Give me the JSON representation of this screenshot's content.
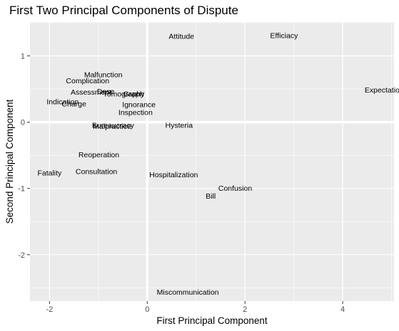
{
  "chart_data": {
    "type": "scatter",
    "title": "First Two Principal Components of Dispute",
    "xlabel": "First Principal Component",
    "ylabel": "Second Principal Component",
    "xlim": [
      -2.4,
      5.05
    ],
    "ylim": [
      -2.7,
      1.51
    ],
    "xticks": [
      -2,
      0,
      2,
      4
    ],
    "yticks": [
      -2,
      -1,
      0,
      1
    ],
    "xtick_labels": [
      "-2",
      "0",
      "2",
      "4"
    ],
    "ytick_labels": [
      "-2",
      "-1",
      "0",
      "1"
    ],
    "reference_lines": {
      "x": 0,
      "y": 0,
      "color": "#ffffff"
    },
    "grid": true,
    "panel_background": "#ebebeb",
    "grid_color": "#ffffff",
    "text_color": "#000000",
    "tick_color": "#4d4d4d",
    "points": [
      {
        "label": "Attitude",
        "x": 0.7,
        "y": 1.3
      },
      {
        "label": "Efficiacy",
        "x": 2.8,
        "y": 1.31
      },
      {
        "label": "Expectation",
        "x": 4.85,
        "y": 0.49
      },
      {
        "label": "Malfunction",
        "x": -0.9,
        "y": 0.72
      },
      {
        "label": "Complication",
        "x": -1.22,
        "y": 0.63
      },
      {
        "label": "Assessment",
        "x": -1.15,
        "y": 0.46
      },
      {
        "label": "Dose",
        "x": -0.85,
        "y": 0.47
      },
      {
        "label": "Tomography",
        "x": -0.48,
        "y": 0.43
      },
      {
        "label": "Graph",
        "x": -0.28,
        "y": 0.43
      },
      {
        "label": "Indication",
        "x": -1.73,
        "y": 0.31
      },
      {
        "label": "Charge",
        "x": -1.5,
        "y": 0.28
      },
      {
        "label": "Ignorance",
        "x": -0.17,
        "y": 0.27
      },
      {
        "label": "Inspection",
        "x": -0.24,
        "y": 0.15
      },
      {
        "label": "Bureaucracy",
        "x": -0.7,
        "y": -0.04
      },
      {
        "label": "Malpractice",
        "x": -0.72,
        "y": -0.06
      },
      {
        "label": "Hysteria",
        "x": 0.65,
        "y": -0.04
      },
      {
        "label": "Reoperation",
        "x": -0.99,
        "y": -0.49
      },
      {
        "label": "Fatality",
        "x": -2.0,
        "y": -0.76
      },
      {
        "label": "Consultation",
        "x": -1.04,
        "y": -0.74
      },
      {
        "label": "Hospitalization",
        "x": 0.54,
        "y": -0.79
      },
      {
        "label": "Confusion",
        "x": 1.8,
        "y": -0.99
      },
      {
        "label": "Bill",
        "x": 1.3,
        "y": -1.11
      },
      {
        "label": "Miscommunication",
        "x": 0.83,
        "y": -2.56
      }
    ]
  }
}
